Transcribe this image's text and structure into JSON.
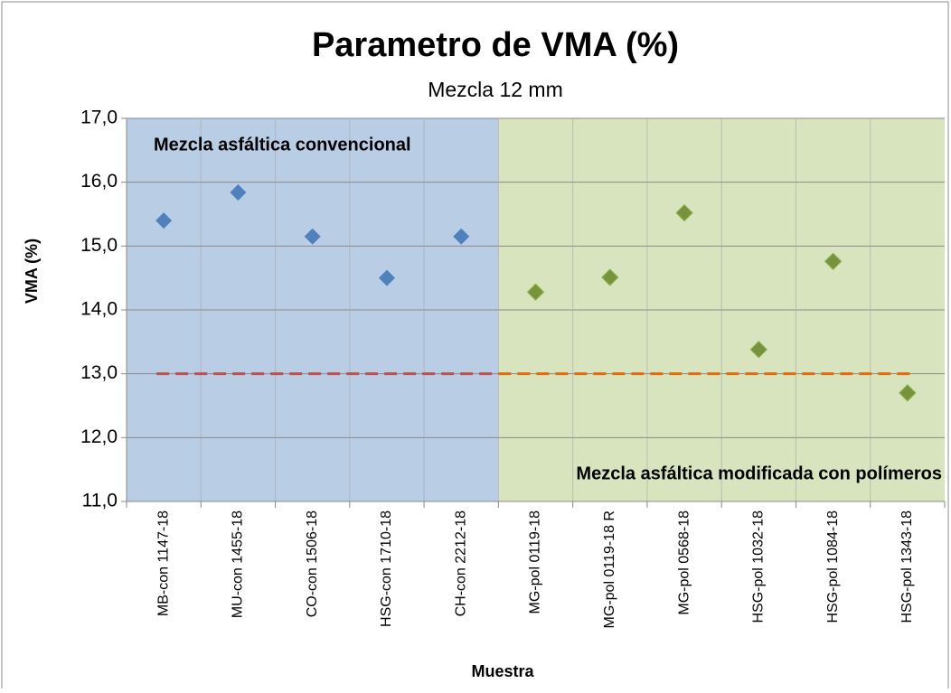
{
  "chart_data": {
    "type": "scatter",
    "title": "Parametro de VMA (%)",
    "subtitle": "Mezcla 12 mm",
    "y_label": "VMA (%)",
    "x_label": "Muestra",
    "categories": [
      "MB-con 1147-18",
      "MU-con 1455-18",
      "CO-con 1506-18",
      "HSG-con 1710-18",
      "CH-con 2212-18",
      "MG-pol 0119-18",
      "MG-pol 0119-18 R",
      "MG-pol 0568-18",
      "HSG-pol 1032-18",
      "HSG-pol 1084-18",
      "HSG-pol 1343-18"
    ],
    "series": [
      {
        "name": "Mezcla asfáltica convencional",
        "color": "#4f81bd",
        "background": "#b9cde5",
        "label_color": "#2e5c9a",
        "values": [
          15.4,
          15.84,
          15.15,
          14.5,
          15.15,
          null,
          null,
          null,
          null,
          null,
          null
        ]
      },
      {
        "name": "Mezcla asfáltica modificada con polímeros",
        "color": "#77933c",
        "background": "#d7e4bd",
        "label_color": "#5f7f2a",
        "values": [
          null,
          null,
          null,
          null,
          null,
          14.28,
          14.51,
          15.52,
          13.38,
          14.76,
          12.7
        ]
      }
    ],
    "limit": {
      "value": 13.0,
      "colors": [
        "#c0504d",
        "#e46c0a"
      ]
    },
    "ylim": [
      11.0,
      17.0
    ],
    "yticks": [
      {
        "value": 11,
        "label": "11,0"
      },
      {
        "value": 12,
        "label": "12,0"
      },
      {
        "value": 13,
        "label": "13,0"
      },
      {
        "value": 14,
        "label": "14,0"
      },
      {
        "value": 15,
        "label": "15,0"
      },
      {
        "value": 16,
        "label": "16,0"
      },
      {
        "value": 17,
        "label": "17,0"
      }
    ],
    "grid": true
  }
}
